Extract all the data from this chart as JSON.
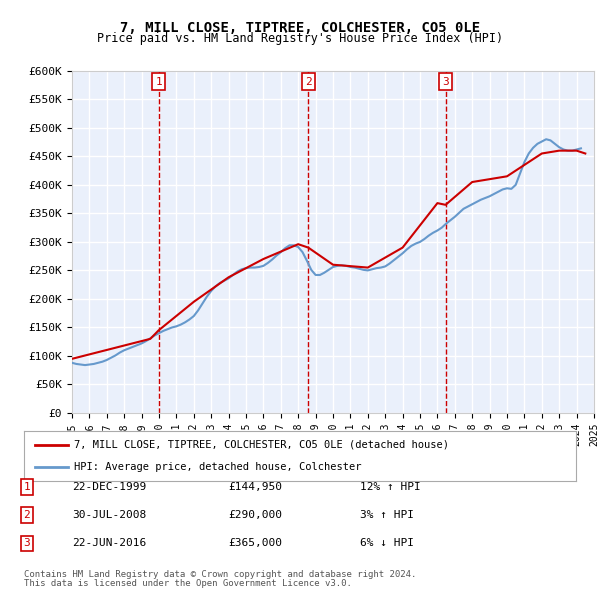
{
  "title": "7, MILL CLOSE, TIPTREE, COLCHESTER, CO5 0LE",
  "subtitle": "Price paid vs. HM Land Registry's House Price Index (HPI)",
  "ylabel": "",
  "xlabel": "",
  "ylim": [
    0,
    600000
  ],
  "yticks": [
    0,
    50000,
    100000,
    150000,
    200000,
    250000,
    300000,
    350000,
    400000,
    450000,
    500000,
    550000,
    600000
  ],
  "ytick_labels": [
    "£0",
    "£50K",
    "£100K",
    "£150K",
    "£200K",
    "£250K",
    "£300K",
    "£350K",
    "£400K",
    "£450K",
    "£500K",
    "£550K",
    "£600K"
  ],
  "background_color": "#eaf0fb",
  "plot_bg_color": "#eaf0fb",
  "grid_color": "#ffffff",
  "line_color_property": "#cc0000",
  "line_color_hpi": "#6699cc",
  "sales": [
    {
      "date_num": 1999.98,
      "price": 144950,
      "label": "1",
      "date_str": "22-DEC-1999",
      "pct": "12%",
      "direction": "↑"
    },
    {
      "date_num": 2008.58,
      "price": 290000,
      "label": "2",
      "date_str": "30-JUL-2008",
      "pct": "3%",
      "direction": "↑"
    },
    {
      "date_num": 2016.47,
      "price": 365000,
      "label": "3",
      "date_str": "22-JUN-2016",
      "pct": "6%",
      "direction": "↓"
    }
  ],
  "legend_property": "7, MILL CLOSE, TIPTREE, COLCHESTER, CO5 0LE (detached house)",
  "legend_hpi": "HPI: Average price, detached house, Colchester",
  "footer1": "Contains HM Land Registry data © Crown copyright and database right 2024.",
  "footer2": "This data is licensed under the Open Government Licence v3.0.",
  "hpi_data": {
    "years": [
      1995.0,
      1995.25,
      1995.5,
      1995.75,
      1996.0,
      1996.25,
      1996.5,
      1996.75,
      1997.0,
      1997.25,
      1997.5,
      1997.75,
      1998.0,
      1998.25,
      1998.5,
      1998.75,
      1999.0,
      1999.25,
      1999.5,
      1999.75,
      2000.0,
      2000.25,
      2000.5,
      2000.75,
      2001.0,
      2001.25,
      2001.5,
      2001.75,
      2002.0,
      2002.25,
      2002.5,
      2002.75,
      2003.0,
      2003.25,
      2003.5,
      2003.75,
      2004.0,
      2004.25,
      2004.5,
      2004.75,
      2005.0,
      2005.25,
      2005.5,
      2005.75,
      2006.0,
      2006.25,
      2006.5,
      2006.75,
      2007.0,
      2007.25,
      2007.5,
      2007.75,
      2008.0,
      2008.25,
      2008.5,
      2008.75,
      2009.0,
      2009.25,
      2009.5,
      2009.75,
      2010.0,
      2010.25,
      2010.5,
      2010.75,
      2011.0,
      2011.25,
      2011.5,
      2011.75,
      2012.0,
      2012.25,
      2012.5,
      2012.75,
      2013.0,
      2013.25,
      2013.5,
      2013.75,
      2014.0,
      2014.25,
      2014.5,
      2014.75,
      2015.0,
      2015.25,
      2015.5,
      2015.75,
      2016.0,
      2016.25,
      2016.5,
      2016.75,
      2017.0,
      2017.25,
      2017.5,
      2017.75,
      2018.0,
      2018.25,
      2018.5,
      2018.75,
      2019.0,
      2019.25,
      2019.5,
      2019.75,
      2020.0,
      2020.25,
      2020.5,
      2020.75,
      2021.0,
      2021.25,
      2021.5,
      2021.75,
      2022.0,
      2022.25,
      2022.5,
      2022.75,
      2023.0,
      2023.25,
      2023.5,
      2023.75,
      2024.0,
      2024.25
    ],
    "values": [
      88000,
      86000,
      85000,
      84000,
      85000,
      86000,
      88000,
      90000,
      93000,
      97000,
      101000,
      106000,
      110000,
      113000,
      116000,
      119000,
      122000,
      126000,
      131000,
      136000,
      140000,
      144000,
      147000,
      150000,
      152000,
      155000,
      159000,
      164000,
      170000,
      180000,
      192000,
      204000,
      214000,
      222000,
      228000,
      232000,
      236000,
      242000,
      248000,
      252000,
      254000,
      255000,
      255000,
      256000,
      258000,
      263000,
      269000,
      276000,
      282000,
      289000,
      294000,
      294000,
      291000,
      282000,
      267000,
      251000,
      242000,
      242000,
      246000,
      251000,
      256000,
      258000,
      259000,
      258000,
      256000,
      255000,
      253000,
      251000,
      250000,
      252000,
      254000,
      255000,
      257000,
      262000,
      268000,
      274000,
      280000,
      287000,
      293000,
      297000,
      300000,
      305000,
      311000,
      316000,
      320000,
      325000,
      332000,
      338000,
      344000,
      351000,
      358000,
      362000,
      366000,
      370000,
      374000,
      377000,
      380000,
      384000,
      388000,
      392000,
      394000,
      393000,
      400000,
      420000,
      440000,
      455000,
      465000,
      472000,
      476000,
      480000,
      478000,
      472000,
      466000,
      462000,
      460000,
      460000,
      462000,
      464000
    ]
  },
  "property_data": {
    "years": [
      1995.0,
      1999.5,
      1999.98,
      2002.0,
      2004.0,
      2006.0,
      2008.0,
      2008.58,
      2010.0,
      2012.0,
      2014.0,
      2016.0,
      2016.47,
      2018.0,
      2020.0,
      2022.0,
      2023.0,
      2024.0,
      2024.5
    ],
    "values": [
      95000,
      130000,
      144950,
      195000,
      238000,
      270000,
      296000,
      290000,
      260000,
      255000,
      290000,
      368000,
      365000,
      405000,
      415000,
      455000,
      460000,
      460000,
      455000
    ]
  }
}
